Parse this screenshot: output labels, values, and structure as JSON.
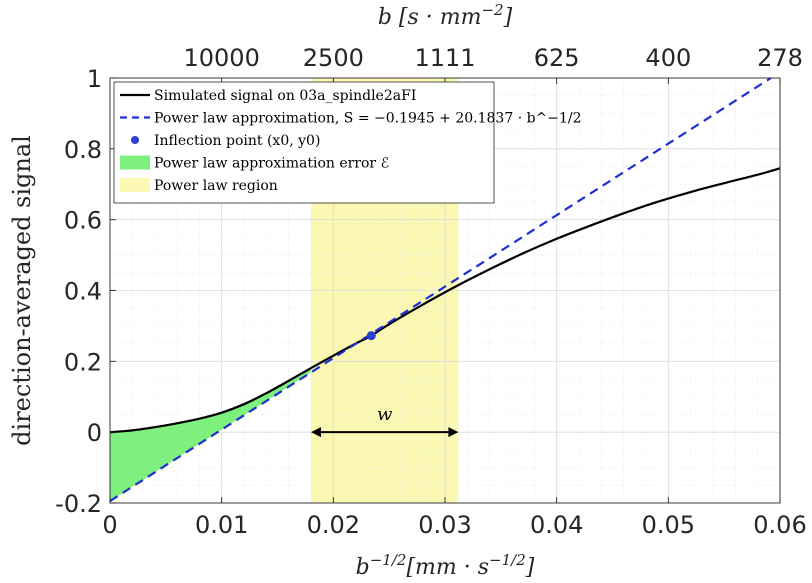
{
  "chart_data": {
    "type": "line",
    "top_axis_label": "b [s · mm^−2]",
    "top_axis_label_parts": {
      "base": "b [s · mm",
      "sup": "−2",
      "close": "]"
    },
    "top_ticks": [
      {
        "x": 0.01,
        "label": "10000"
      },
      {
        "x": 0.02,
        "label": "2500"
      },
      {
        "x": 0.03,
        "label": "1111"
      },
      {
        "x": 0.04,
        "label": "625"
      },
      {
        "x": 0.05,
        "label": "400"
      },
      {
        "x": 0.06,
        "label": "278"
      }
    ],
    "xlabel": "b^−1/2[mm · s^−1/2]",
    "xlabel_parts": {
      "b": "b",
      "sup1": "−1/2",
      "mid": "[mm · s",
      "sup2": "−1/2",
      "close": "]"
    },
    "ylabel": "direction-averaged signal",
    "xlim": [
      0,
      0.06
    ],
    "ylim": [
      -0.2,
      1
    ],
    "xticks": [
      0,
      0.01,
      0.02,
      0.03,
      0.04,
      0.05,
      0.06
    ],
    "xtick_labels": [
      "0",
      "0.01",
      "0.02",
      "0.03",
      "0.04",
      "0.05",
      "0.06"
    ],
    "yticks": [
      -0.2,
      0,
      0.2,
      0.4,
      0.6,
      0.8,
      1
    ],
    "ytick_labels": [
      "-0.2",
      "0",
      "0.2",
      "0.4",
      "0.6",
      "0.8",
      "1"
    ],
    "grid": true,
    "legend_placement": "top-left",
    "legend": [
      {
        "kind": "line",
        "text": "Simulated signal on 03a_spindle2aFI",
        "color": "#000000"
      },
      {
        "kind": "dash",
        "text": "Power law approximation, S = −0.1945 + 20.1837 · b^−1/2",
        "color": "#1f2fd6"
      },
      {
        "kind": "marker",
        "text": "Inflection point (x0, y0)",
        "color": "#2b3fd0"
      },
      {
        "kind": "patch",
        "text": "Power law approximation error ℰ",
        "color": "#7ef07e"
      },
      {
        "kind": "patch",
        "text": "Power law region",
        "color": "#fbf8b4"
      }
    ],
    "series": [
      {
        "name": "Simulated signal on 03a_spindle2aFI",
        "color": "#000000",
        "x": [
          0,
          0.002,
          0.004,
          0.006,
          0.008,
          0.01,
          0.012,
          0.014,
          0.016,
          0.018,
          0.02,
          0.022,
          0.0234,
          0.025,
          0.028,
          0.031,
          0.034,
          0.037,
          0.04,
          0.043,
          0.046,
          0.049,
          0.052,
          0.055,
          0.058,
          0.06
        ],
        "y": [
          0,
          0.005,
          0.014,
          0.025,
          0.038,
          0.055,
          0.079,
          0.11,
          0.145,
          0.181,
          0.216,
          0.25,
          0.2725,
          0.305,
          0.36,
          0.412,
          0.46,
          0.505,
          0.546,
          0.583,
          0.618,
          0.65,
          0.678,
          0.703,
          0.727,
          0.745
        ]
      },
      {
        "name": "Power law approximation",
        "color": "#1f2fd6",
        "style": "dashed",
        "intercept": -0.1945,
        "slope": 20.1837
      }
    ],
    "inflection_point": {
      "x": 0.0234,
      "y": 0.2725
    },
    "power_law_region": {
      "x_start": 0.018,
      "x_end": 0.0312
    },
    "error_region": {
      "x_start": 0,
      "x_end": 0.018
    },
    "annotation": {
      "text": "w",
      "x_start": 0.018,
      "x_end": 0.0312,
      "y": 0
    }
  }
}
